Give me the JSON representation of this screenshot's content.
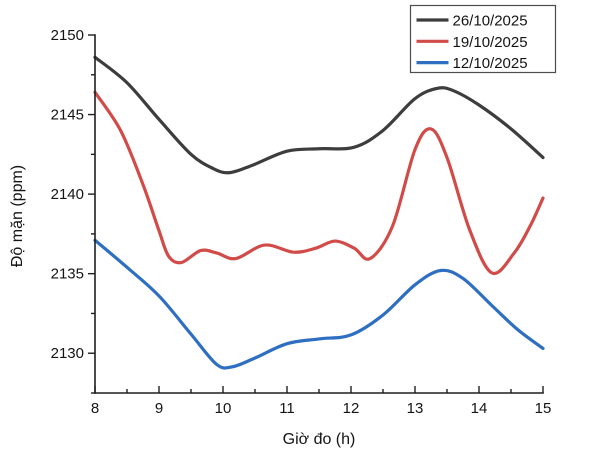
{
  "chart_data": {
    "type": "line",
    "title": "",
    "xlabel": "Giờ đo (h)",
    "ylabel": "Độ mặn (ppm)",
    "xlim": [
      8,
      15
    ],
    "ylim": [
      2127.5,
      2150
    ],
    "grid": false,
    "legend_position": "top-right",
    "x_major_ticks": [
      8,
      9,
      10,
      11,
      12,
      13,
      14,
      15
    ],
    "x_minor_ticks": [
      8.5,
      9.5,
      10.5,
      11.5,
      12.5,
      13.5,
      14.5
    ],
    "y_major_ticks": [
      2130,
      2135,
      2140,
      2145,
      2150
    ],
    "y_minor_ticks": [
      2127.5,
      2132.5,
      2137.5,
      2142.5,
      2147.5
    ],
    "axis_color": "#1f1f1f",
    "series": [
      {
        "name": "26/10/2025",
        "color": "#3d3d3d",
        "points": [
          [
            8,
            2148.6
          ],
          [
            8.5,
            2147.0
          ],
          [
            9,
            2144.7
          ],
          [
            9.5,
            2142.5
          ],
          [
            9.85,
            2141.6
          ],
          [
            10.1,
            2141.35
          ],
          [
            10.45,
            2141.8
          ],
          [
            11,
            2142.7
          ],
          [
            11.5,
            2142.85
          ],
          [
            12.05,
            2142.95
          ],
          [
            12.5,
            2144.0
          ],
          [
            13,
            2146.0
          ],
          [
            13.35,
            2146.65
          ],
          [
            13.6,
            2146.5
          ],
          [
            14,
            2145.6
          ],
          [
            14.5,
            2144.1
          ],
          [
            15,
            2142.3
          ]
        ]
      },
      {
        "name": "19/10/2025",
        "color": "#d14b48",
        "points": [
          [
            8,
            2146.4
          ],
          [
            8.4,
            2144.0
          ],
          [
            8.75,
            2140.6
          ],
          [
            9,
            2137.7
          ],
          [
            9.15,
            2136.1
          ],
          [
            9.35,
            2135.7
          ],
          [
            9.65,
            2136.45
          ],
          [
            9.9,
            2136.3
          ],
          [
            10.2,
            2135.95
          ],
          [
            10.65,
            2136.8
          ],
          [
            11.1,
            2136.35
          ],
          [
            11.45,
            2136.6
          ],
          [
            11.75,
            2137.05
          ],
          [
            12.05,
            2136.6
          ],
          [
            12.3,
            2135.95
          ],
          [
            12.65,
            2138.0
          ],
          [
            13,
            2142.8
          ],
          [
            13.25,
            2144.1
          ],
          [
            13.5,
            2142.3
          ],
          [
            13.85,
            2137.8
          ],
          [
            14.2,
            2135.05
          ],
          [
            14.55,
            2136.3
          ],
          [
            14.8,
            2138.0
          ],
          [
            15,
            2139.75
          ]
        ]
      },
      {
        "name": "12/10/2025",
        "color": "#2e6fc2",
        "points": [
          [
            8,
            2137.1
          ],
          [
            8.5,
            2135.4
          ],
          [
            9,
            2133.6
          ],
          [
            9.5,
            2131.2
          ],
          [
            9.9,
            2129.3
          ],
          [
            10.15,
            2129.15
          ],
          [
            10.5,
            2129.7
          ],
          [
            11,
            2130.6
          ],
          [
            11.5,
            2130.9
          ],
          [
            12,
            2131.15
          ],
          [
            12.5,
            2132.4
          ],
          [
            13,
            2134.3
          ],
          [
            13.4,
            2135.2
          ],
          [
            13.75,
            2134.7
          ],
          [
            14.2,
            2133.0
          ],
          [
            14.6,
            2131.5
          ],
          [
            15,
            2130.3
          ]
        ]
      }
    ]
  }
}
